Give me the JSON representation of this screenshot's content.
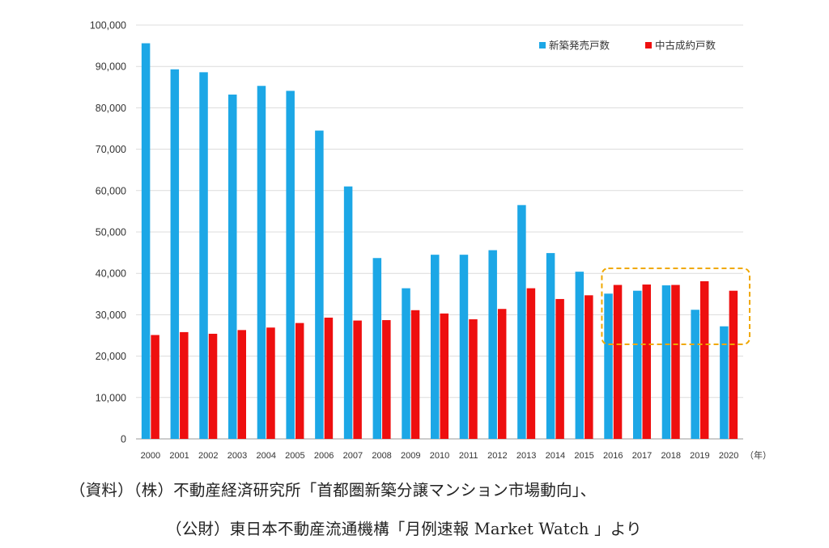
{
  "chart_data": {
    "type": "bar",
    "categories": [
      "2000",
      "2001",
      "2002",
      "2003",
      "2004",
      "2005",
      "2006",
      "2007",
      "2008",
      "2009",
      "2010",
      "2011",
      "2012",
      "2013",
      "2014",
      "2015",
      "2016",
      "2017",
      "2018",
      "2019",
      "2020"
    ],
    "series": [
      {
        "name": "新築発売戸数",
        "color": "#1ca7e6",
        "values": [
          95600,
          89300,
          88600,
          83200,
          85300,
          84100,
          74500,
          61000,
          43700,
          36400,
          44500,
          44500,
          45600,
          56500,
          44900,
          40400,
          35100,
          35800,
          37100,
          31200,
          27200
        ]
      },
      {
        "name": "中古成約戸数",
        "color": "#ee0f0f",
        "values": [
          25100,
          25800,
          25400,
          26300,
          26900,
          28000,
          29300,
          28600,
          28700,
          31100,
          30300,
          28900,
          31400,
          36400,
          33800,
          34700,
          37200,
          37300,
          37200,
          38100,
          35800
        ]
      }
    ],
    "yticks": [
      "0",
      "10,000",
      "20,000",
      "30,000",
      "40,000",
      "50,000",
      "60,000",
      "70,000",
      "80,000",
      "90,000",
      "100,000"
    ],
    "ylim": [
      0,
      100000
    ],
    "x_unit": "（年）",
    "legend_position": "top-right",
    "grid": true,
    "highlight": {
      "from": "2016",
      "to": "2020",
      "color": "#f0a800",
      "style": "dashed"
    }
  },
  "source": {
    "line1": "（資料）（株）不動産経済研究所「首都圏新築分譲マンション市場動向」、",
    "line2": "（公財）東日本不動産流通機構「月例速報 Market Watch 」より"
  }
}
